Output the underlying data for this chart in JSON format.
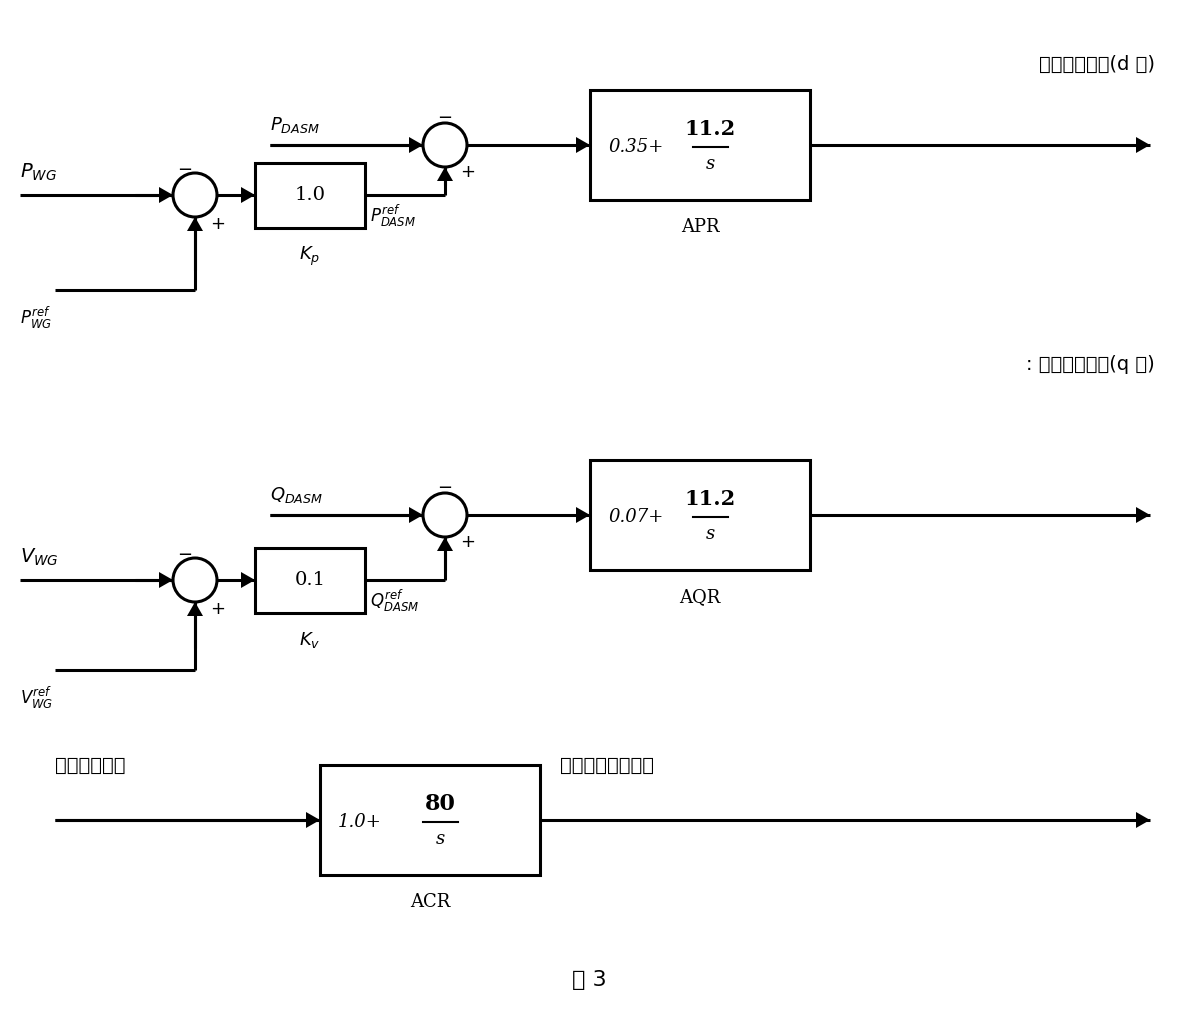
{
  "bg_color": "#ffffff",
  "line_color": "#000000",
  "line_width": 2.2,
  "fig_caption": "图 3",
  "top_label": "期望转子电流(d 轴)",
  "mid_label": "期望转子电流(q 轴)",
  "bottom_label_in": "转子电流偏差",
  "bottom_label_out": "二次励磁电压信号",
  "apr_label": "APR",
  "aqr_label": "AQR",
  "acr_label": "ACR"
}
